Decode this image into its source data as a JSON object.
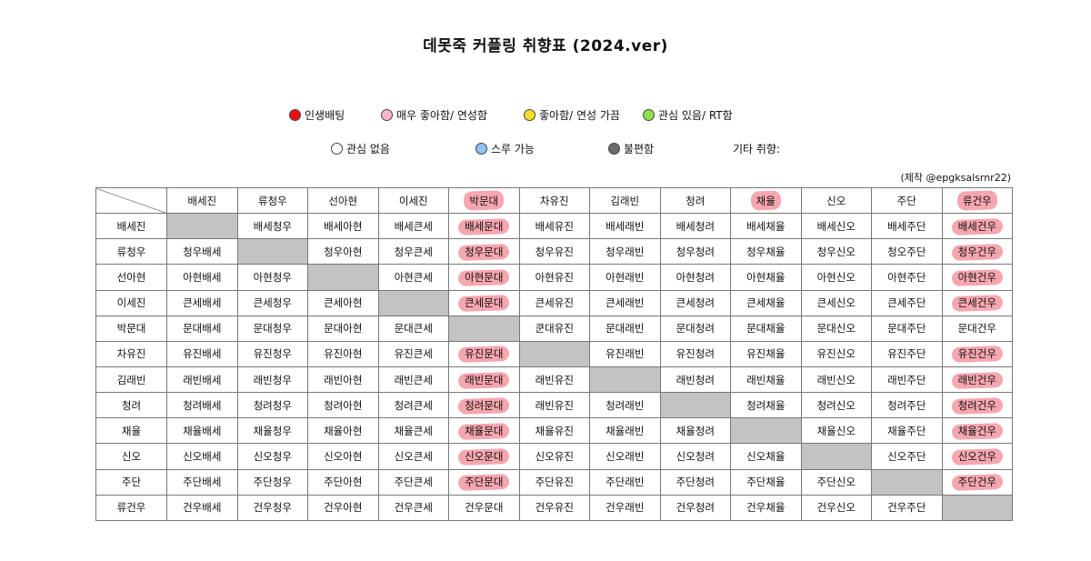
{
  "title": "데못죽 커플링 취향표 (2024.ver)",
  "legend": [
    {
      "label": "인생배팅",
      "color": "#ee1111"
    },
    {
      "label": "매우 좋아함/ 연성함",
      "color": "#f7b6c8"
    },
    {
      "label": "좋아함/ 연성 가끔",
      "color": "#f5dd2a"
    },
    {
      "label": "관심 있음/ RT함",
      "color": "#8fe04a"
    },
    {
      "label": "관심 없음",
      "color": "#ffffff"
    },
    {
      "label": "스루 가능",
      "color": "#8fc3f3"
    },
    {
      "label": "불편함",
      "color": "#6b6b6b"
    }
  ],
  "legend_other": "기타 취향:",
  "credit": "(제작 @epgksalsrnr22)",
  "highlight_color": "#f06a7a",
  "columns": [
    "배세진",
    "류청우",
    "선아현",
    "이세진",
    "박문대",
    "차유진",
    "김래빈",
    "청려",
    "채율",
    "신오",
    "주단",
    "류건우"
  ],
  "highlighted_columns": [
    "박문대",
    "채율",
    "류건우"
  ],
  "rows": [
    {
      "name": "배세진",
      "cells": [
        "",
        "배세청우",
        "배세아현",
        "배세큰세",
        "배세문대",
        "배세유진",
        "배세래빈",
        "배세청려",
        "배세채율",
        "배세신오",
        "배세주단",
        "배세건우"
      ]
    },
    {
      "name": "류청우",
      "cells": [
        "청우배세",
        "",
        "청우아현",
        "청우큰세",
        "청우문대",
        "청우유진",
        "청우래빈",
        "청우청려",
        "청우채율",
        "청우신오",
        "청오주단",
        "청우건우"
      ]
    },
    {
      "name": "선아현",
      "cells": [
        "아현배세",
        "아현청우",
        "",
        "아현큰세",
        "아현문대",
        "아현유진",
        "아현래빈",
        "아현청려",
        "아현채율",
        "아현신오",
        "아현주단",
        "아현건우"
      ]
    },
    {
      "name": "이세진",
      "cells": [
        "큰세배세",
        "큰세청우",
        "큰세아현",
        "",
        "큰세문대",
        "큰세유진",
        "큰세래빈",
        "큰세청려",
        "큰세채율",
        "큰세신오",
        "큰세주단",
        "큰세건우"
      ]
    },
    {
      "name": "박문대",
      "cells": [
        "문대배세",
        "문대청우",
        "문대아현",
        "문대큰세",
        "",
        "쿤대유진",
        "문대래빈",
        "문대청려",
        "문대채율",
        "문대신오",
        "문대주단",
        "문대건우"
      ]
    },
    {
      "name": "차유진",
      "cells": [
        "유진배세",
        "유진청우",
        "유진아현",
        "유진큰세",
        "유진문대",
        "",
        "유진래빈",
        "유진청려",
        "유진채율",
        "유진신오",
        "유진주단",
        "유진건우"
      ]
    },
    {
      "name": "김래빈",
      "cells": [
        "래빈배세",
        "래빈청우",
        "래빈아현",
        "래빈큰세",
        "래빈문대",
        "래빈유진",
        "",
        "래빈청려",
        "래빈채율",
        "래빈신오",
        "래빈주단",
        "래빈건우"
      ]
    },
    {
      "name": "청려",
      "cells": [
        "청려배세",
        "청려청우",
        "청려아현",
        "청려큰세",
        "청려문대",
        "래빈유진",
        "청려래빈",
        "",
        "청려채율",
        "청려신오",
        "청려주단",
        "청려건우"
      ]
    },
    {
      "name": "채율",
      "cells": [
        "채율배세",
        "채율청우",
        "채율아현",
        "채율큰세",
        "채율문대",
        "채율유진",
        "채율래빈",
        "채율청려",
        "",
        "채율신오",
        "채율주단",
        "채율건우"
      ]
    },
    {
      "name": "신오",
      "cells": [
        "신오배세",
        "신오청우",
        "신오아현",
        "신오큰세",
        "신오문대",
        "신오유진",
        "신오래빈",
        "신오청려",
        "신오채율",
        "",
        "신오주단",
        "신오건우"
      ]
    },
    {
      "name": "주단",
      "cells": [
        "주단배세",
        "주단청우",
        "주단아현",
        "주단큰세",
        "주단문대",
        "주단유진",
        "주단래빈",
        "주단청려",
        "주단채율",
        "주단신오",
        "",
        "주단건우"
      ]
    },
    {
      "name": "류건우",
      "cells": [
        "건우배세",
        "건우청우",
        "건우아현",
        "건우큰세",
        "건우문대",
        "건우유진",
        "건우래빈",
        "건우청려",
        "건우채율",
        "건우신오",
        "건우주단",
        ""
      ]
    }
  ],
  "highlighted_cells": [
    [
      0,
      4
    ],
    [
      1,
      4
    ],
    [
      2,
      4
    ],
    [
      3,
      4
    ],
    [
      5,
      4
    ],
    [
      6,
      4
    ],
    [
      7,
      4
    ],
    [
      8,
      4
    ],
    [
      9,
      4
    ],
    [
      10,
      4
    ],
    [
      0,
      11
    ],
    [
      1,
      11
    ],
    [
      2,
      11
    ],
    [
      3,
      11
    ],
    [
      5,
      11
    ],
    [
      6,
      11
    ],
    [
      7,
      11
    ],
    [
      8,
      11
    ],
    [
      9,
      11
    ],
    [
      10,
      11
    ]
  ]
}
